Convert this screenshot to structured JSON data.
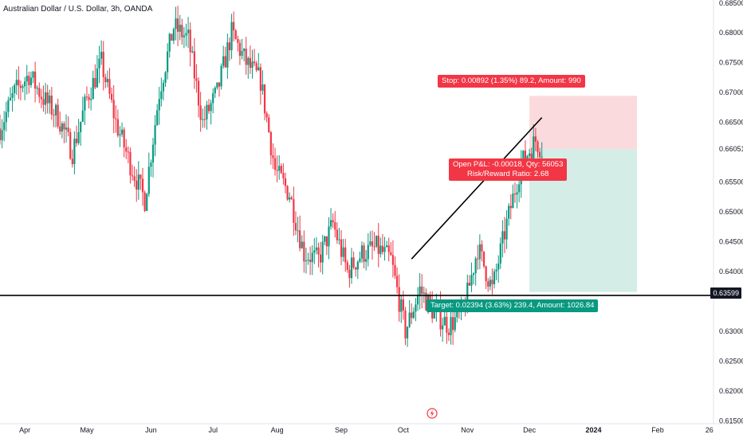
{
  "chart_title": "Australian Dollar / U.S. Dollar, 3h, OANDA",
  "current_price_tag": "0.63599",
  "position": {
    "stop_label": "Stop: 0.00892 (1.35%) 89.2, Amount: 990",
    "open_pl_label": "Open P&L: -0.00018, Qty: 56053",
    "risk_reward_label": "Risk/Reward Ratio: 2.68",
    "target_label": "Target: 0.02394 (3.63%) 239.4, Amount: 1026.84",
    "entry": 0.66051,
    "stop": 0.66943,
    "target": 0.63657,
    "start_date": "2023-12-01",
    "end_date": "2024-01-22"
  },
  "colors": {
    "up": "#089981",
    "down": "#f23645",
    "stop_zone": "#fbdadd",
    "target_zone": "#d4ede6",
    "line": "#000000",
    "axis_text": "#131722"
  },
  "icons": {
    "event": "lightning-icon"
  },
  "chart_data": {
    "type": "candlestick",
    "title": "Australian Dollar / U.S. Dollar, 3h, OANDA",
    "x_ticks": [
      "Apr",
      "May",
      "Jun",
      "Jul",
      "Aug",
      "Sep",
      "Oct",
      "Nov",
      "Dec",
      "2024",
      "Feb",
      "26"
    ],
    "y_ticks": [
      "0.68500",
      "0.68000",
      "0.67500",
      "0.67000",
      "0.66500",
      "0.66051",
      "0.65500",
      "0.65000",
      "0.64500",
      "0.64000",
      "0.63599",
      "0.63000",
      "0.62500",
      "0.62000",
      "0.61500"
    ],
    "ylim": [
      0.6145,
      0.6855
    ],
    "xlim": [
      "2023-03-20",
      "2024-02-28"
    ],
    "horizontal_line": 0.63599,
    "trend_line": {
      "from": [
        "2023-10-05",
        0.6421
      ],
      "to": [
        "2023-12-07",
        0.6658
      ]
    },
    "series": [
      {
        "values": [
          [
            "2023-03-20",
            0.664
          ],
          [
            "2023-03-27",
            0.67
          ],
          [
            "2023-04-03",
            0.673
          ],
          [
            "2023-04-10",
            0.669
          ],
          [
            "2023-04-17",
            0.666
          ],
          [
            "2023-04-24",
            0.66
          ],
          [
            "2023-05-01",
            0.669
          ],
          [
            "2023-05-08",
            0.675
          ],
          [
            "2023-05-15",
            0.665
          ],
          [
            "2023-05-22",
            0.658
          ],
          [
            "2023-05-29",
            0.652
          ],
          [
            "2023-06-05",
            0.67
          ],
          [
            "2023-06-12",
            0.681
          ],
          [
            "2023-06-19",
            0.679
          ],
          [
            "2023-06-26",
            0.665
          ],
          [
            "2023-07-03",
            0.67
          ],
          [
            "2023-07-10",
            0.68
          ],
          [
            "2023-07-17",
            0.675
          ],
          [
            "2023-07-24",
            0.672
          ],
          [
            "2023-07-31",
            0.657
          ],
          [
            "2023-08-07",
            0.653
          ],
          [
            "2023-08-14",
            0.643
          ],
          [
            "2023-08-21",
            0.642
          ],
          [
            "2023-08-28",
            0.648
          ],
          [
            "2023-09-04",
            0.64
          ],
          [
            "2023-09-11",
            0.643
          ],
          [
            "2023-09-18",
            0.644
          ],
          [
            "2023-09-25",
            0.642
          ],
          [
            "2023-10-02",
            0.63
          ],
          [
            "2023-10-09",
            0.637
          ],
          [
            "2023-10-16",
            0.633
          ],
          [
            "2023-10-23",
            0.631
          ],
          [
            "2023-10-30",
            0.633
          ],
          [
            "2023-11-06",
            0.644
          ],
          [
            "2023-11-13",
            0.637
          ],
          [
            "2023-11-20",
            0.648
          ],
          [
            "2023-11-27",
            0.658
          ],
          [
            "2023-12-04",
            0.662
          ],
          [
            "2023-12-07",
            0.6605
          ]
        ]
      }
    ]
  }
}
